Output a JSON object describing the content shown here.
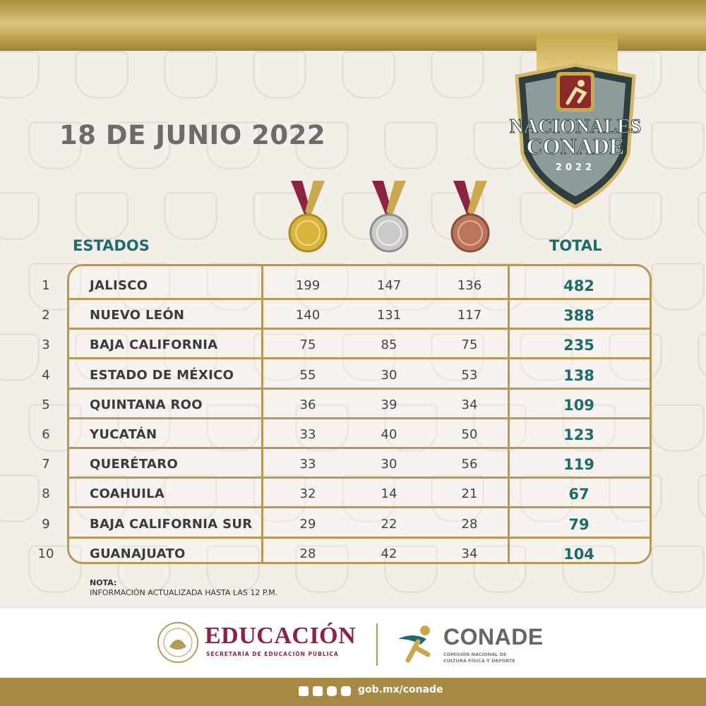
{
  "date": "18 DE JUNIO 2022",
  "logo": {
    "line1": "NACIONALES",
    "line2": "CONADE",
    "year": "2022"
  },
  "headers": {
    "states": "ESTADOS",
    "total": "TOTAL"
  },
  "medals": [
    "gold",
    "silver",
    "bronze"
  ],
  "rows": [
    {
      "rank": "1",
      "state": "JALISCO",
      "gold": "199",
      "silver": "147",
      "bronze": "136",
      "total": "482"
    },
    {
      "rank": "2",
      "state": "NUEVO LEÓN",
      "gold": "140",
      "silver": "131",
      "bronze": "117",
      "total": "388"
    },
    {
      "rank": "3",
      "state": "BAJA CALIFORNIA",
      "gold": "75",
      "silver": "85",
      "bronze": "75",
      "total": "235"
    },
    {
      "rank": "4",
      "state": "ESTADO DE MÉXICO",
      "gold": "55",
      "silver": "30",
      "bronze": "53",
      "total": "138"
    },
    {
      "rank": "5",
      "state": "QUINTANA ROO",
      "gold": "36",
      "silver": "39",
      "bronze": "34",
      "total": "109"
    },
    {
      "rank": "6",
      "state": "YUCATÁN",
      "gold": "33",
      "silver": "40",
      "bronze": "50",
      "total": "123"
    },
    {
      "rank": "7",
      "state": "QUERÉTARO",
      "gold": "33",
      "silver": "30",
      "bronze": "56",
      "total": "119"
    },
    {
      "rank": "8",
      "state": "COAHUILA",
      "gold": "32",
      "silver": "14",
      "bronze": "21",
      "total": "67"
    },
    {
      "rank": "9",
      "state": "BAJA CALIFORNIA SUR",
      "gold": "29",
      "silver": "22",
      "bronze": "28",
      "total": "79"
    },
    {
      "rank": "10",
      "state": "GUANAJUATO",
      "gold": "28",
      "silver": "42",
      "bronze": "34",
      "total": "104"
    }
  ],
  "note": {
    "label": "NOTA:",
    "text": "INFORMACIÓN ACTUALIZADA HASTA LAS 12 P.M."
  },
  "footer": {
    "edu_title": "EDUCACIÓN",
    "edu_subtitle": "SECRETARÍA DE EDUCACIÓN PÚBLICA",
    "conade_title": "CONADE",
    "conade_subtitle": "COMISIÓN NACIONAL DE CULTURA FÍSICA Y DEPORTE",
    "url": "gob.mx/conade"
  },
  "colors": {
    "accent": "#1e6b6b",
    "gold_frame": "#b59a57",
    "edu": "#8c2340",
    "bar": "#a88a44"
  }
}
